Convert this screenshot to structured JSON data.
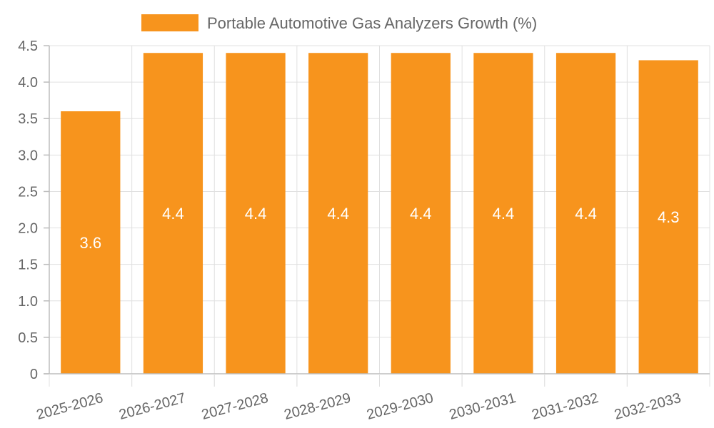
{
  "chart_data": {
    "type": "bar",
    "categories": [
      "2025-2026",
      "2026-2027",
      "2027-2028",
      "2028-2029",
      "2029-2030",
      "2030-2031",
      "2031-2032",
      "2032-2033"
    ],
    "series": [
      {
        "name": "Portable Automotive Gas Analyzers Growth (%)",
        "values": [
          3.6,
          4.4,
          4.4,
          4.4,
          4.4,
          4.4,
          4.4,
          4.3
        ],
        "color": "#f7941d"
      }
    ],
    "data_labels": [
      "3.6",
      "4.4",
      "4.4",
      "4.4",
      "4.4",
      "4.4",
      "4.4",
      "4.3"
    ],
    "y_ticks": [
      "0",
      "0.5",
      "1.0",
      "1.5",
      "2.0",
      "2.5",
      "3.0",
      "3.5",
      "4.0",
      "4.5"
    ],
    "y_tick_values": [
      0,
      0.5,
      1.0,
      1.5,
      2.0,
      2.5,
      3.0,
      3.5,
      4.0,
      4.5
    ],
    "ylim": [
      0,
      4.5
    ],
    "title": "",
    "xlabel": "",
    "ylabel": "",
    "legend_position": "top-center",
    "grid": true
  }
}
